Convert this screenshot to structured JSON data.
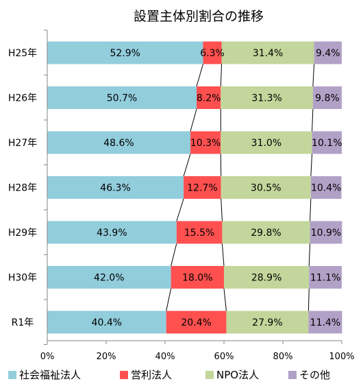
{
  "chart_data": {
    "type": "bar",
    "orientation": "horizontal",
    "stacked": "percent",
    "title": "設置主体別割合の推移",
    "categories": [
      "H25年",
      "H26年",
      "H27年",
      "H28年",
      "H29年",
      "H30年",
      "R1年"
    ],
    "series": [
      {
        "name": "社会福祉法人",
        "color": "#92CDDC",
        "values": [
          52.9,
          50.7,
          48.6,
          46.3,
          43.9,
          42.0,
          40.4
        ],
        "labels": [
          "52.9%",
          "50.7%",
          "48.6%",
          "46.3%",
          "43.9%",
          "42.0%",
          "40.4%"
        ]
      },
      {
        "name": "営利法人",
        "color": "#FF5050",
        "values": [
          6.3,
          8.2,
          10.3,
          12.7,
          15.5,
          18.0,
          20.4
        ],
        "labels": [
          "6.3%",
          "8.2%",
          "10.3%",
          "12.7%",
          "15.5%",
          "18.0%",
          "20.4%"
        ]
      },
      {
        "name": "NPO法人",
        "color": "#C3D69B",
        "values": [
          31.4,
          31.3,
          31.0,
          30.5,
          29.8,
          28.9,
          27.9
        ],
        "labels": [
          "31.4%",
          "31.3%",
          "31.0%",
          "30.5%",
          "29.8%",
          "28.9%",
          "27.9%"
        ]
      },
      {
        "name": "その他",
        "color": "#B2A1C7",
        "values": [
          9.4,
          9.8,
          10.1,
          10.4,
          10.9,
          11.1,
          11.4
        ],
        "labels": [
          "9.4%",
          "9.8%",
          "10.1%",
          "10.4%",
          "10.9%",
          "11.1%",
          "11.4%"
        ]
      }
    ],
    "xlim": [
      0,
      100
    ],
    "xticks": [
      "0%",
      "20%",
      "40%",
      "60%",
      "80%",
      "100%"
    ],
    "series_lines": true,
    "legend_position": "bottom",
    "grid": false
  }
}
